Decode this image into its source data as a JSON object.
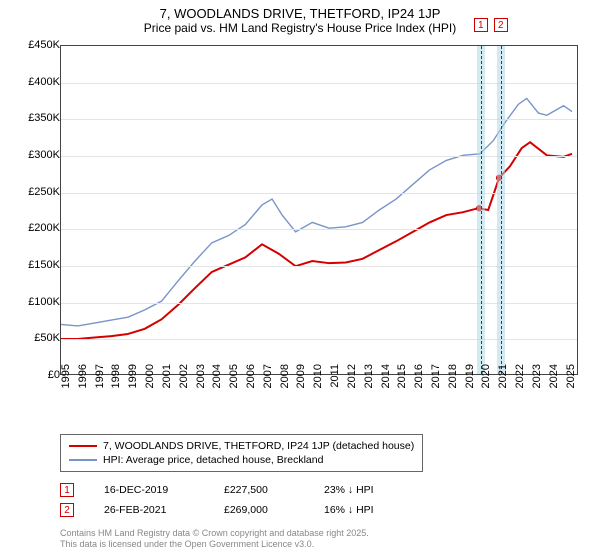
{
  "title": "7, WOODLANDS DRIVE, THETFORD, IP24 1JP",
  "subtitle": "Price paid vs. HM Land Registry's House Price Index (HPI)",
  "chart": {
    "type": "line",
    "background_color": "#ffffff",
    "grid_color": "#e4e4e4",
    "axis_color": "#444444",
    "title_fontsize": 13,
    "label_fontsize": 11,
    "x_start": 1995,
    "x_end": 2025.8,
    "x_ticks": [
      1995,
      1996,
      1997,
      1998,
      1999,
      2000,
      2001,
      2002,
      2003,
      2004,
      2005,
      2006,
      2007,
      2008,
      2009,
      2010,
      2011,
      2012,
      2013,
      2014,
      2015,
      2016,
      2017,
      2018,
      2019,
      2020,
      2021,
      2022,
      2023,
      2024,
      2025
    ],
    "y_min": 0,
    "y_max": 450000,
    "y_ticks": [
      0,
      50000,
      100000,
      150000,
      200000,
      250000,
      300000,
      350000,
      400000,
      450000
    ],
    "y_tick_labels": [
      "£0",
      "£50K",
      "£100K",
      "£150K",
      "£200K",
      "£250K",
      "£300K",
      "£350K",
      "£400K",
      "£450K"
    ],
    "series": [
      {
        "name": "7, WOODLANDS DRIVE, THETFORD, IP24 1JP (detached house)",
        "color": "#d40000",
        "line_width": 2,
        "data": [
          [
            1995,
            48000
          ],
          [
            1996,
            48000
          ],
          [
            1997,
            50000
          ],
          [
            1998,
            52000
          ],
          [
            1999,
            55000
          ],
          [
            2000,
            62000
          ],
          [
            2001,
            75000
          ],
          [
            2002,
            95000
          ],
          [
            2003,
            118000
          ],
          [
            2004,
            140000
          ],
          [
            2005,
            150000
          ],
          [
            2006,
            160000
          ],
          [
            2007,
            178000
          ],
          [
            2008,
            165000
          ],
          [
            2009,
            148000
          ],
          [
            2010,
            155000
          ],
          [
            2011,
            152000
          ],
          [
            2012,
            153000
          ],
          [
            2013,
            158000
          ],
          [
            2014,
            170000
          ],
          [
            2015,
            182000
          ],
          [
            2016,
            195000
          ],
          [
            2017,
            208000
          ],
          [
            2018,
            218000
          ],
          [
            2019,
            222000
          ],
          [
            2019.9,
            227500
          ],
          [
            2020.5,
            225000
          ],
          [
            2021.15,
            269000
          ],
          [
            2021.8,
            285000
          ],
          [
            2022.5,
            310000
          ],
          [
            2023,
            318000
          ],
          [
            2024,
            300000
          ],
          [
            2025,
            298000
          ],
          [
            2025.5,
            302000
          ]
        ]
      },
      {
        "name": "HPI: Average price, detached house, Breckland",
        "color": "#7895c9",
        "line_width": 1.4,
        "data": [
          [
            1995,
            68000
          ],
          [
            1996,
            66000
          ],
          [
            1997,
            70000
          ],
          [
            1998,
            74000
          ],
          [
            1999,
            78000
          ],
          [
            2000,
            88000
          ],
          [
            2001,
            100000
          ],
          [
            2002,
            128000
          ],
          [
            2003,
            155000
          ],
          [
            2004,
            180000
          ],
          [
            2005,
            190000
          ],
          [
            2006,
            205000
          ],
          [
            2007,
            232000
          ],
          [
            2007.6,
            240000
          ],
          [
            2008.2,
            218000
          ],
          [
            2009,
            195000
          ],
          [
            2010,
            208000
          ],
          [
            2011,
            200000
          ],
          [
            2012,
            202000
          ],
          [
            2013,
            208000
          ],
          [
            2014,
            225000
          ],
          [
            2015,
            240000
          ],
          [
            2016,
            260000
          ],
          [
            2017,
            280000
          ],
          [
            2018,
            293000
          ],
          [
            2019,
            300000
          ],
          [
            2020,
            302000
          ],
          [
            2020.8,
            320000
          ],
          [
            2021.5,
            345000
          ],
          [
            2022.3,
            370000
          ],
          [
            2022.8,
            378000
          ],
          [
            2023.5,
            358000
          ],
          [
            2024,
            355000
          ],
          [
            2025,
            368000
          ],
          [
            2025.5,
            360000
          ]
        ]
      }
    ],
    "markers": [
      {
        "id": "1",
        "date_label": "16-DEC-2019",
        "x": 2019.96,
        "price": 227500,
        "price_label": "£227,500",
        "diff_label": "23% ↓ HPI",
        "band_color": "rgba(173,216,230,0.55)"
      },
      {
        "id": "2",
        "date_label": "26-FEB-2021",
        "x": 2021.15,
        "price": 269000,
        "price_label": "£269,000",
        "diff_label": "16% ↓ HPI",
        "band_color": "rgba(173,216,230,0.55)"
      }
    ]
  },
  "attribution": {
    "line1": "Contains HM Land Registry data © Crown copyright and database right 2025.",
    "line2": "This data is licensed under the Open Government Licence v3.0."
  }
}
